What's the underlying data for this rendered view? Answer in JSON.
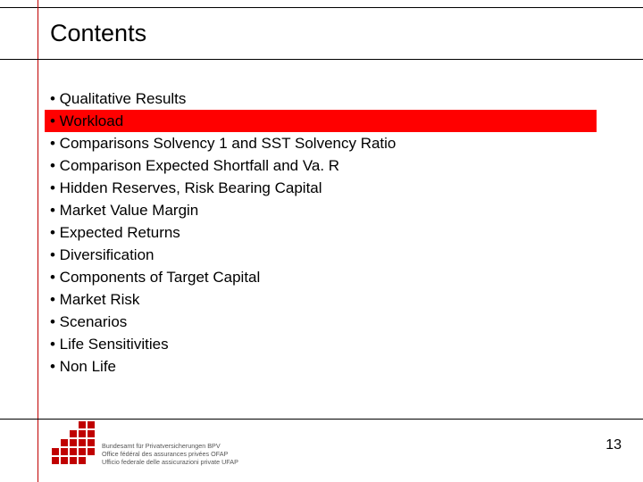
{
  "title": "Contents",
  "bullets": [
    "Qualitative  Results",
    "Workload",
    "Comparisons Solvency 1 and SST Solvency Ratio",
    "Comparison Expected Shortfall and Va. R",
    "Hidden Reserves, Risk Bearing Capital",
    "Market Value Margin",
    "Expected Returns",
    "Diversification",
    "Components of Target Capital",
    "Market Risk",
    "Scenarios",
    "Life Sensitivities",
    "Non Life"
  ],
  "highlight_index": 1,
  "highlight_color": "#ff0000",
  "accent_color": "#c00000",
  "page_number": "13",
  "footer_lines": [
    "Bundesamt für Privatversicherungen BPV",
    "Office fédéral des assurances privées OFAP",
    "Ufficio federale delle assicurazioni private UFAP"
  ],
  "logo_pattern": [
    [
      0,
      0,
      0,
      1,
      1
    ],
    [
      0,
      0,
      1,
      1,
      1
    ],
    [
      0,
      1,
      1,
      1,
      1
    ],
    [
      1,
      1,
      1,
      1,
      1
    ],
    [
      1,
      1,
      1,
      1,
      0
    ]
  ]
}
